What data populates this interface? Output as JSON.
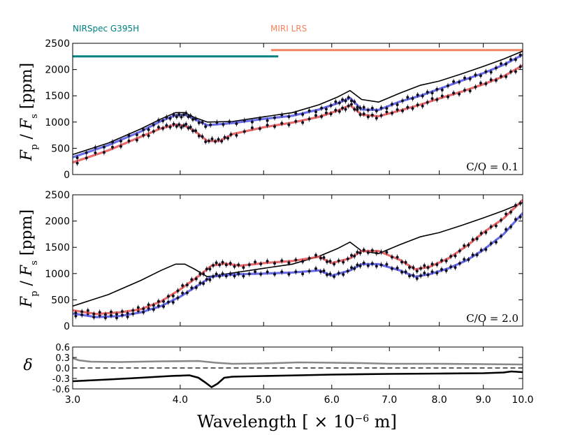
{
  "chart_data": [
    {
      "type": "line",
      "panel": "top",
      "ylabel": "F_p / F_s [ppm]",
      "ylim": [
        0,
        2500
      ],
      "yticks": [
        "0",
        "500",
        "1000",
        "1500",
        "2000",
        "2500"
      ],
      "annotation": "C/O = 0.1",
      "instruments": [
        {
          "name": "NIRSpec G395H",
          "range": [
            3.0,
            5.2
          ],
          "y": 2250,
          "color": "#008080"
        },
        {
          "name": "MIRI LRS",
          "range": [
            5.1,
            10.0
          ],
          "y": 2370,
          "color": "#f4845f"
        }
      ],
      "series": [
        {
          "name": "reference",
          "color": "#000000",
          "x": [
            3.0,
            3.3,
            3.6,
            3.8,
            3.95,
            4.05,
            4.15,
            4.3,
            4.6,
            5.0,
            5.4,
            5.8,
            6.1,
            6.3,
            6.5,
            6.8,
            7.2,
            7.6,
            8.0,
            8.5,
            9.0,
            9.5,
            10.0
          ],
          "y": [
            380,
            600,
            870,
            1060,
            1180,
            1180,
            1090,
            1000,
            1010,
            1100,
            1180,
            1330,
            1480,
            1600,
            1430,
            1380,
            1550,
            1700,
            1780,
            1920,
            2060,
            2200,
            2350
          ]
        },
        {
          "name": "blue model",
          "color": "#4f52e8",
          "x": [
            3.0,
            3.3,
            3.6,
            3.8,
            3.95,
            4.05,
            4.15,
            4.3,
            4.6,
            5.0,
            5.4,
            5.8,
            6.1,
            6.3,
            6.5,
            6.8,
            7.2,
            7.6,
            8.0,
            8.5,
            9.0,
            9.5,
            10.0
          ],
          "y": [
            330,
            560,
            820,
            1020,
            1130,
            1140,
            1060,
            940,
            980,
            1060,
            1120,
            1240,
            1360,
            1460,
            1240,
            1230,
            1390,
            1500,
            1630,
            1790,
            1930,
            2090,
            2280
          ]
        },
        {
          "name": "red model",
          "color": "#e85050",
          "x": [
            3.0,
            3.3,
            3.6,
            3.8,
            3.95,
            4.05,
            4.15,
            4.3,
            4.45,
            4.6,
            5.0,
            5.4,
            5.8,
            6.1,
            6.3,
            6.5,
            6.8,
            7.2,
            7.6,
            8.0,
            8.5,
            9.0,
            9.5,
            10.0
          ],
          "y": [
            230,
            460,
            720,
            880,
            950,
            930,
            840,
            640,
            640,
            770,
            900,
            990,
            1100,
            1220,
            1320,
            1140,
            1110,
            1220,
            1330,
            1450,
            1580,
            1720,
            1870,
            2080
          ]
        }
      ]
    },
    {
      "type": "line",
      "panel": "middle",
      "ylabel": "F_p / F_s [ppm]",
      "ylim": [
        0,
        2500
      ],
      "yticks": [
        "0",
        "500",
        "1000",
        "1500",
        "2000",
        "2500"
      ],
      "annotation": "C/O = 2.0",
      "series": [
        {
          "name": "reference",
          "color": "#000000",
          "x": [
            3.0,
            3.3,
            3.6,
            3.8,
            3.95,
            4.05,
            4.15,
            4.3,
            4.6,
            5.0,
            5.4,
            5.8,
            6.1,
            6.3,
            6.5,
            6.8,
            7.2,
            7.6,
            8.0,
            8.5,
            9.0,
            9.5,
            10.0
          ],
          "y": [
            380,
            600,
            870,
            1060,
            1180,
            1180,
            1090,
            940,
            1010,
            1100,
            1180,
            1330,
            1480,
            1600,
            1430,
            1380,
            1550,
            1700,
            1780,
            1920,
            2060,
            2200,
            2350
          ]
        },
        {
          "name": "blue model",
          "color": "#4f52e8",
          "x": [
            3.0,
            3.2,
            3.4,
            3.6,
            3.8,
            4.0,
            4.2,
            4.35,
            4.5,
            4.7,
            5.0,
            5.4,
            5.8,
            6.0,
            6.3,
            6.5,
            6.8,
            7.2,
            7.5,
            7.8,
            8.2,
            8.6,
            9.0,
            9.5,
            10.0
          ],
          "y": [
            240,
            170,
            190,
            260,
            380,
            560,
            780,
            940,
            970,
            990,
            1000,
            1020,
            1060,
            960,
            1060,
            1180,
            1180,
            1060,
            940,
            990,
            1100,
            1250,
            1450,
            1750,
            2150
          ]
        },
        {
          "name": "red model",
          "color": "#e85050",
          "x": [
            3.0,
            3.2,
            3.4,
            3.6,
            3.8,
            4.0,
            4.2,
            4.35,
            4.5,
            4.7,
            5.0,
            5.4,
            5.8,
            6.0,
            6.3,
            6.5,
            6.8,
            7.2,
            7.5,
            7.8,
            8.2,
            8.6,
            9.0,
            9.5,
            10.0
          ],
          "y": [
            300,
            230,
            260,
            320,
            470,
            700,
            950,
            1150,
            1190,
            1150,
            1200,
            1240,
            1320,
            1200,
            1290,
            1430,
            1430,
            1260,
            1080,
            1130,
            1290,
            1520,
            1780,
            2050,
            2400
          ]
        }
      ]
    },
    {
      "type": "line",
      "panel": "bottom",
      "ylabel": "δ",
      "ylim": [
        -0.6,
        0.6
      ],
      "yticks": [
        "-0.6",
        "-0.3",
        "0.0",
        "0.3",
        "0.6"
      ],
      "xlabel": "Wavelength [ × 10^-6 m]",
      "xlim": [
        3.0,
        10.0
      ],
      "xscale": "log",
      "xticks": [
        "3.0",
        "4.0",
        "5.0",
        "6.0",
        "7.0",
        "8.0",
        "9.0",
        "10.0"
      ],
      "series": [
        {
          "name": "grey residual",
          "color": "#888888",
          "x": [
            3.0,
            3.05,
            3.15,
            3.4,
            3.8,
            4.2,
            4.4,
            4.6,
            5.0,
            5.5,
            6.0,
            6.5,
            7.0,
            8.0,
            9.0,
            10.0
          ],
          "y": [
            0.28,
            0.22,
            0.18,
            0.17,
            0.19,
            0.2,
            0.15,
            0.12,
            0.13,
            0.16,
            0.15,
            0.14,
            0.12,
            0.12,
            0.11,
            0.1
          ]
        },
        {
          "name": "zero line",
          "color": "#000000",
          "dashed": true,
          "x": [
            3.0,
            10.0
          ],
          "y": [
            0.0,
            0.0
          ]
        },
        {
          "name": "black residual",
          "color": "#000000",
          "x": [
            3.0,
            3.3,
            3.6,
            3.9,
            4.1,
            4.2,
            4.28,
            4.35,
            4.42,
            4.5,
            4.6,
            5.0,
            5.5,
            6.0,
            7.0,
            8.0,
            9.0,
            9.5,
            9.7,
            10.0
          ],
          "y": [
            -0.38,
            -0.33,
            -0.28,
            -0.23,
            -0.21,
            -0.28,
            -0.42,
            -0.55,
            -0.45,
            -0.28,
            -0.25,
            -0.23,
            -0.21,
            -0.19,
            -0.17,
            -0.16,
            -0.15,
            -0.13,
            -0.1,
            -0.12
          ]
        }
      ]
    }
  ]
}
